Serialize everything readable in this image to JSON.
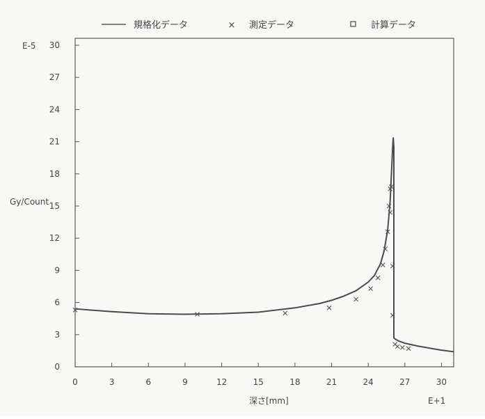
{
  "chart_data": {
    "type": "line",
    "title": "",
    "xlabel": "深さ[mm]",
    "ylabel": "Gy/Count",
    "x_scale_label": "E+1",
    "y_scale_label": "E-5",
    "xlim": [
      0,
      31
    ],
    "ylim": [
      0,
      31
    ],
    "x_ticks": [
      "0",
      "3",
      "6",
      "9",
      "12",
      "15",
      "18",
      "21",
      "24",
      "27",
      "30"
    ],
    "y_ticks": [
      "0",
      "3",
      "6",
      "9",
      "12",
      "15",
      "18",
      "21",
      "24",
      "27",
      "30"
    ],
    "grid": false,
    "legend": {
      "placement": "top",
      "entries": [
        {
          "label": "規格化データ",
          "marker": "line"
        },
        {
          "label": "測定データ",
          "marker": "x"
        },
        {
          "label": "計算データ",
          "marker": "square"
        }
      ]
    },
    "series": [
      {
        "name": "規格化データ",
        "kind": "line",
        "x": [
          0,
          3,
          6,
          9,
          12,
          15,
          18,
          20,
          21,
          22,
          23,
          24,
          24.5,
          25,
          25.3,
          25.6,
          25.8,
          25.9,
          26.0,
          26.05,
          26.1,
          26.1,
          26.2,
          26.5,
          27,
          28,
          29,
          30,
          31
        ],
        "y": [
          5.4,
          5.15,
          4.95,
          4.9,
          4.95,
          5.1,
          5.5,
          5.9,
          6.2,
          6.6,
          7.1,
          7.9,
          8.5,
          9.6,
          10.8,
          12.8,
          15.5,
          18.0,
          20.5,
          21.4,
          20.5,
          2.7,
          2.6,
          2.4,
          2.2,
          1.95,
          1.75,
          1.55,
          1.4
        ]
      },
      {
        "name": "測定データ",
        "kind": "scatter",
        "x": [
          0,
          10,
          17.2,
          20.8,
          23,
          24.2,
          24.8,
          25.2,
          25.4,
          25.6,
          25.7,
          25.8,
          25.8,
          25.9,
          26.0,
          26.0,
          26.2,
          26.4,
          26.8,
          27.3
        ],
        "y": [
          5.3,
          4.9,
          5.0,
          5.5,
          6.3,
          7.3,
          8.3,
          9.5,
          11.0,
          12.6,
          15.0,
          16.6,
          14.4,
          16.8,
          9.4,
          4.8,
          2.1,
          1.9,
          1.8,
          1.7
        ]
      }
    ]
  }
}
